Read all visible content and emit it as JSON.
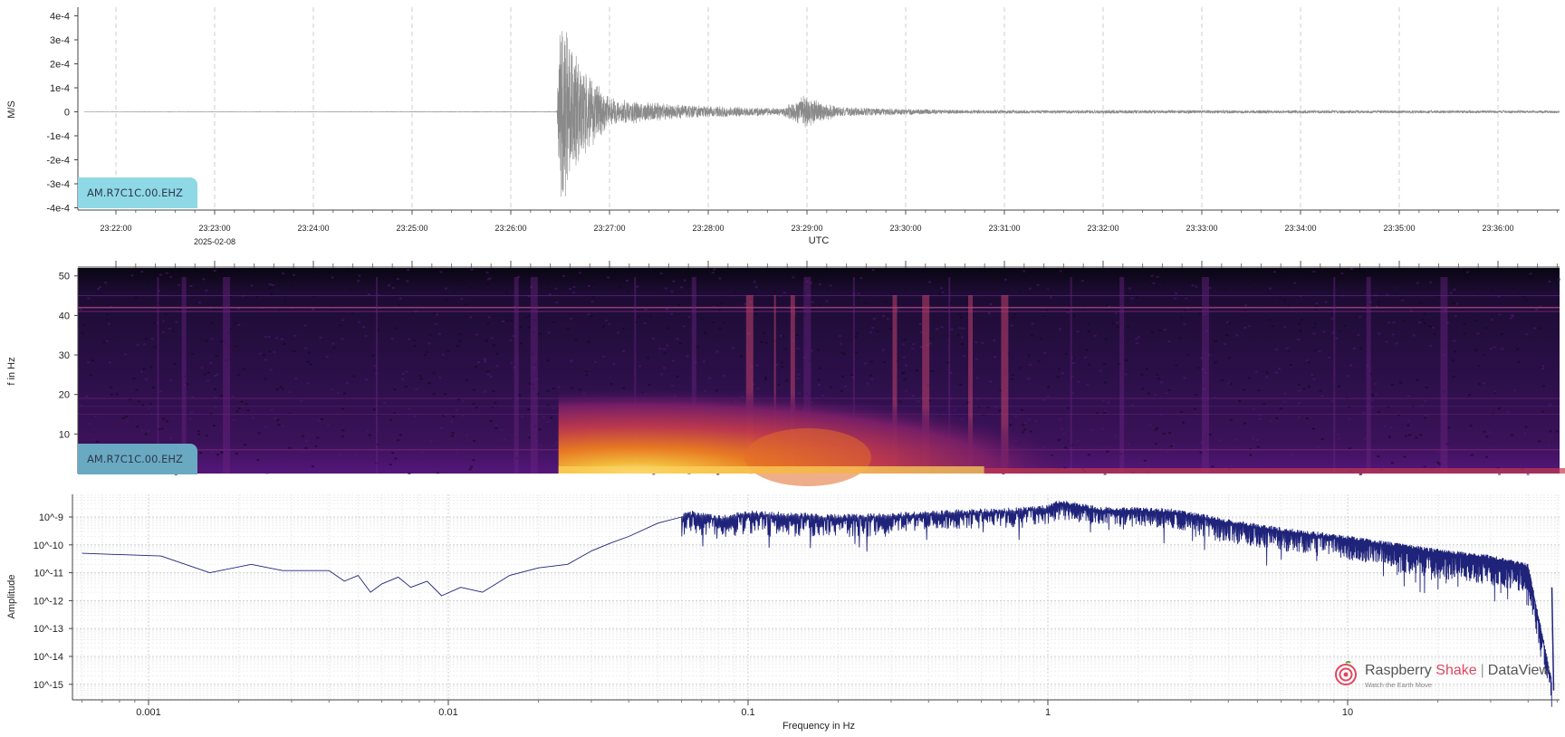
{
  "station_label": "AM.R7C1C.00.EHZ",
  "colors": {
    "waveform": "#8a8a8a",
    "spectrum": "#1f237a",
    "badge_top": "#8fd8e6",
    "badge_mid": "#6aa9c2",
    "brand": "#e0465f"
  },
  "branding": {
    "name": "Raspberry",
    "name_accent": "Shake",
    "product": "DataView",
    "tagline": "Watch the Earth Move",
    "icon": "raspberry-shake-logo-icon"
  },
  "chart_data": [
    {
      "type": "line",
      "title": "",
      "xlabel": "UTC",
      "ylabel": "M/S",
      "date_label": "2025-02-08",
      "x_ticks": [
        "23:22:00",
        "23:23:00",
        "23:24:00",
        "23:25:00",
        "23:26:00",
        "23:27:00",
        "23:28:00",
        "23:29:00",
        "23:30:00",
        "23:31:00",
        "23:32:00",
        "23:33:00",
        "23:34:00",
        "23:35:00",
        "23:36:00"
      ],
      "y_ticks": [
        "4e-4",
        "3e-4",
        "2e-4",
        "1e-4",
        "0",
        "-1e-4",
        "-2e-4",
        "-3e-4",
        "-4e-4"
      ],
      "ylim": [
        -0.0004,
        0.0004
      ],
      "grid": true,
      "legend": "bottom-left",
      "series": [
        {
          "name": "AM.R7C1C.00.EHZ",
          "envelope_points": [
            {
              "t": "23:21:40",
              "amp": 3e-07
            },
            {
              "t": "23:26:28",
              "amp": 8e-07
            },
            {
              "t": "23:26:30",
              "amp": 0.00042
            },
            {
              "t": "23:26:36",
              "amp": 0.0003
            },
            {
              "t": "23:26:45",
              "amp": 0.00018
            },
            {
              "t": "23:27:00",
              "amp": 6e-05
            },
            {
              "t": "23:27:40",
              "amp": 3e-05
            },
            {
              "t": "23:28:45",
              "amp": 1.5e-05
            },
            {
              "t": "23:28:58",
              "amp": 7e-05
            },
            {
              "t": "23:29:20",
              "amp": 2e-05
            },
            {
              "t": "23:30:30",
              "amp": 8e-06
            },
            {
              "t": "23:36:40",
              "amp": 6e-06
            }
          ]
        }
      ]
    },
    {
      "type": "heatmap",
      "title": "",
      "xlabel": "",
      "ylabel": "f in Hz",
      "y_ticks": [
        "50",
        "40",
        "30",
        "20",
        "10"
      ],
      "ylim": [
        0,
        50
      ],
      "colormap": "inferno",
      "legend": "bottom-left",
      "series": [
        {
          "name": "AM.R7C1C.00.EHZ"
        }
      ]
    },
    {
      "type": "line",
      "title": "",
      "xlabel": "Frequency in Hz",
      "ylabel": "Amplitude",
      "x_scale": "log",
      "y_scale": "log",
      "x_ticks": [
        "0.001",
        "0.01",
        "0.1",
        "1",
        "10"
      ],
      "y_ticks": [
        "10^-9",
        "10^-10",
        "10^-11",
        "10^-12",
        "10^-13",
        "10^-14",
        "10^-15"
      ],
      "xlim": [
        0.0006,
        50
      ],
      "ylim": [
        5e-16,
        4e-09
      ],
      "grid": true,
      "series": [
        {
          "name": "",
          "x": [
            0.0006,
            0.0011,
            0.0016,
            0.0022,
            0.0028,
            0.004,
            0.0045,
            0.005,
            0.0055,
            0.006,
            0.0068,
            0.0075,
            0.0085,
            0.0095,
            0.011,
            0.013,
            0.016,
            0.02,
            0.025,
            0.03,
            0.035,
            0.04,
            0.05,
            0.06,
            0.065,
            0.08,
            0.1,
            0.15,
            0.2,
            0.3,
            0.5,
            0.8,
            1,
            1.1,
            1.5,
            2,
            2.6,
            4,
            6,
            10,
            20,
            30,
            40,
            48
          ],
          "y": [
            5e-11,
            4e-11,
            1e-11,
            2e-11,
            1.2e-11,
            1.2e-11,
            5e-12,
            8e-12,
            2e-12,
            4e-12,
            7e-12,
            3e-12,
            5e-12,
            1.5e-12,
            3e-12,
            2e-12,
            8e-12,
            1.5e-11,
            2e-11,
            6e-11,
            1.2e-10,
            2e-10,
            6e-10,
            1e-09,
            1.2e-09,
            8e-10,
            1.2e-09,
            1e-09,
            9e-10,
            1e-09,
            1.3e-09,
            1.6e-09,
            2e-09,
            3e-09,
            1.6e-09,
            1.6e-09,
            1.4e-09,
            6e-10,
            3e-10,
            1.5e-10,
            5e-11,
            3e-11,
            1.5e-11,
            1e-15
          ]
        }
      ]
    }
  ]
}
